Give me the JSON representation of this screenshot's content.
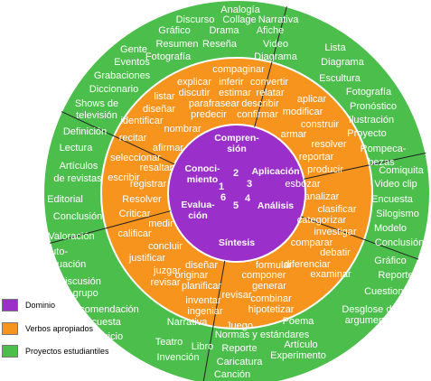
{
  "colors": {
    "domain": "#9b2fc9",
    "verbs": "#f7941d",
    "projects": "#4cbe4c",
    "outline": "#ffffff",
    "divider": "#222222"
  },
  "legend": [
    {
      "label": "Dominio",
      "color": "#9b2fc9"
    },
    {
      "label": "Verbos apropiados",
      "color": "#f7941d"
    },
    {
      "label": "Proyectos estudiantiles",
      "color": "#4cbe4c"
    }
  ],
  "domains": [
    {
      "number": "1",
      "lines": [
        "Conoci-",
        "miento"
      ]
    },
    {
      "number": "2",
      "lines": [
        "Compren-",
        "sión"
      ]
    },
    {
      "number": "3",
      "lines": [
        "Aplicación"
      ]
    },
    {
      "number": "4",
      "lines": [
        "Análisis"
      ]
    },
    {
      "number": "5",
      "lines": [
        "Síntesis"
      ]
    },
    {
      "number": "6",
      "lines": [
        "Evalua-",
        "ción"
      ]
    }
  ],
  "verbs": {
    "conocimiento": [
      "listar",
      "diseñar",
      "identificar",
      "nombrar",
      "recitar",
      "afirmar",
      "seleccionar",
      "resaltar",
      "escribir",
      "registrar"
    ],
    "comprension": [
      "compaginar",
      "explicar",
      "inferir",
      "convertir",
      "discutir",
      "estimar",
      "relatar",
      "parafrasear",
      "describir",
      "predecir",
      "confirmar"
    ],
    "aplicacion": [
      "aplicar",
      "modificar",
      "construir",
      "armar",
      "resolver",
      "reportar",
      "producir",
      "esbozar"
    ],
    "analisis": [
      "analizar",
      "clasificar",
      "categorizar",
      "investigar",
      "comparar",
      "debatir",
      "diferenciar",
      "examinar"
    ],
    "sintesis": [
      "diseñar",
      "formular",
      "originar",
      "componer",
      "planificar",
      "generar",
      "revisar",
      "inventar",
      "combinar",
      "ingeniar",
      "hipotetizar"
    ],
    "evaluacion": [
      "Resolver",
      "Criticar",
      "medir",
      "calificar",
      "concluir",
      "justificar",
      "juzgar",
      "revisar"
    ]
  },
  "projects": {
    "conocimiento": [
      "Gente",
      "Eventos",
      "Grabaciones",
      "Diccionario",
      "Shows de",
      "televisión",
      "Definición",
      "Lectura",
      "Artículos",
      "de revistas"
    ],
    "comprension": [
      "Analogía",
      "Discurso",
      "Collage",
      "Narrativa",
      "Gráfico",
      "Drama",
      "Afiche",
      "Resumen",
      "Reseña",
      "Video",
      "Fotografía",
      "Diagrama",
      "Caricatura"
    ],
    "aplicacion": [
      "Lista",
      "Diagrama",
      "Escultura",
      "Fotografía",
      "Pronóstico",
      "Ilustración",
      "Proyecto",
      "Rompeca-",
      "bezas",
      "Comiquita",
      "Video clip"
    ],
    "analisis": [
      "Encuesta",
      "Silogismo",
      "Modelo",
      "Conclusión",
      "Gráfico",
      "Reporte",
      "Cuestionario",
      "Desglose de",
      "argumento"
    ],
    "sintesis": [
      "Narrativa",
      "Juego",
      "Poema",
      "Normas y estándares",
      "Teatro",
      "Libro",
      "Reporte",
      "Artículo",
      "Invención",
      "Caricatura",
      "Experimento",
      "Canción"
    ],
    "evaluacion": [
      "Editorial",
      "Conclusión",
      "Valoración",
      "Auto-",
      "evaluación",
      "Discusión",
      "de grupo",
      "Recomendación",
      "Encuesta",
      "Juicio"
    ]
  }
}
